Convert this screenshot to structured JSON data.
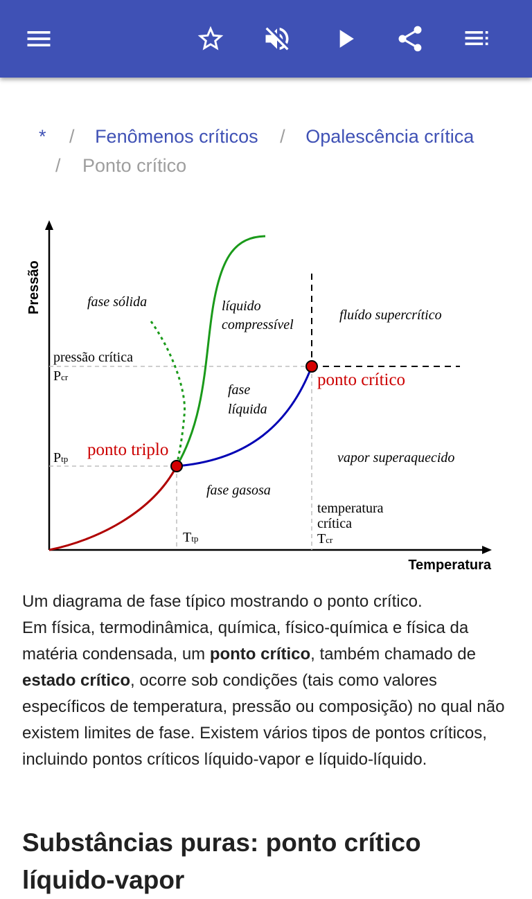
{
  "colors": {
    "appbar": "#3f51b5",
    "link": "#3f51b5",
    "muted": "#9e9e9e",
    "solid_liquid_curve": "#1a9a1a",
    "liquid_gas_curve": "#0000b4",
    "solid_gas_curve": "#b00000",
    "point_fill": "#d40000",
    "point_label": "#cc0000"
  },
  "toolbar": {
    "menu_icon": "menu-icon",
    "star_icon": "star-outline-icon",
    "mute_icon": "volume-off-icon",
    "play_icon": "play-icon",
    "share_icon": "share-icon",
    "list_icon": "playlist-icon"
  },
  "breadcrumb": {
    "root": "*",
    "separator": "/",
    "item1": "Fenômenos críticos",
    "item2": "Opalescência crítica",
    "current": "Ponto crítico"
  },
  "diagram": {
    "y_axis_label": "Pressão",
    "x_axis_label": "Temperatura",
    "region_solid": "fase sólida",
    "region_compressible_line1": "líquido",
    "region_compressible_line2": "compressível",
    "region_supercritical": "fluído supercrítico",
    "region_liquid_line1": "fase",
    "region_liquid_line2": "líquida",
    "region_superheated": "vapor superaquecido",
    "region_gas": "fase gasosa",
    "critical_pressure_label": "pressão crítica",
    "pcr_main": "P",
    "pcr_sub": "cr",
    "ptp_main": "P",
    "ptp_sub": "tp",
    "ttp_main": "T",
    "ttp_sub": "tp",
    "tcr_line1": "temperatura",
    "tcr_line2": "crítica",
    "tcr_main": "T",
    "tcr_sub": "cr",
    "triple_point_label": "ponto triplo",
    "critical_point_label": "ponto crítico"
  },
  "caption": {
    "intro": "Um diagrama de fase típico mostrando o ponto crítico.",
    "p1_before": "Em física, termodinâmica, química, físico-química e física da matéria condensada, um ",
    "p1_bold1": "ponto crítico",
    "p1_mid": ", também chamado de ",
    "p1_bold2": "estado crítico",
    "p1_after": ", ocorre sob condições (tais como valores específicos de temperatura, pressão ou composição) no qual não existem limites de fase. Existem vários tipos de pontos críticos, incluindo pontos críticos líquido-vapor e líquido-líquido."
  },
  "section": {
    "title": "Substâncias puras: ponto crítico líquido-vapor"
  }
}
